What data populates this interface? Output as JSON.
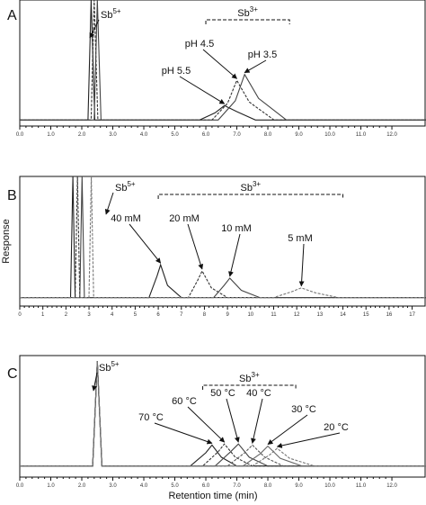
{
  "chart_data": [
    {
      "type": "line",
      "label": "A",
      "xlim": [
        0,
        13.1
      ],
      "ylim": [
        -0.05,
        1
      ],
      "xticks": [
        {
          "value": 0,
          "label": "0.0"
        },
        {
          "value": 1,
          "label": "1.0"
        },
        {
          "value": 2,
          "label": "2.0"
        },
        {
          "value": 3,
          "label": "3.0"
        },
        {
          "value": 4,
          "label": "4.0"
        },
        {
          "value": 5,
          "label": "5.0"
        },
        {
          "value": 6,
          "label": "6.0"
        },
        {
          "value": 7,
          "label": "7.0"
        },
        {
          "value": 8,
          "label": "8.0"
        },
        {
          "value": 9,
          "label": "9.0"
        },
        {
          "value": 10,
          "label": "10.0"
        },
        {
          "value": 11,
          "label": "11.0"
        },
        {
          "value": 12,
          "label": "12.0"
        }
      ],
      "sb5": {
        "base": "Sb",
        "charge": "5+"
      },
      "sb3": {
        "base": "Sb",
        "charge": "3+"
      },
      "series": [
        {
          "name": "pH 5.5",
          "color": "#222",
          "x": [
            0,
            2.2,
            2.3,
            2.42,
            5.8,
            6.3,
            6.6,
            7.0,
            7.6,
            13.1
          ],
          "values": [
            0,
            0,
            1,
            0,
            0,
            0.06,
            0.12,
            0.07,
            0,
            0
          ]
        },
        {
          "name": "pH 4.5",
          "color": "#333",
          "x": [
            0,
            2.3,
            2.4,
            2.52,
            6.2,
            6.7,
            7.0,
            7.4,
            8.2,
            13.1
          ],
          "values": [
            0,
            0,
            1,
            0,
            0,
            0.14,
            0.33,
            0.15,
            0,
            0
          ]
        },
        {
          "name": "pH 3.5",
          "color": "#444",
          "x": [
            0,
            2.4,
            2.5,
            2.62,
            6.4,
            6.95,
            7.25,
            7.7,
            8.6,
            13.1
          ],
          "values": [
            0,
            0,
            1,
            0,
            0,
            0.16,
            0.38,
            0.18,
            0,
            0
          ]
        }
      ]
    },
    {
      "type": "line",
      "label": "B",
      "ylabel": "Response",
      "xlim": [
        0,
        17.6
      ],
      "ylim": [
        -0.07,
        1
      ],
      "xticks": [
        0,
        1,
        2,
        3,
        4,
        5,
        6,
        7,
        8,
        9,
        10,
        11,
        12,
        13,
        14,
        15,
        16,
        17
      ],
      "sb5": {
        "base": "Sb",
        "charge": "5+"
      },
      "sb3": {
        "base": "Sb",
        "charge": "3+"
      },
      "series": [
        {
          "name": "40 mM",
          "color": "#222",
          "x": [
            0,
            2.2,
            2.3,
            2.4,
            5.6,
            5.95,
            6.1,
            6.4,
            7.0,
            17.6
          ],
          "values": [
            0,
            0,
            1,
            0,
            0,
            0.18,
            0.27,
            0.1,
            0,
            0
          ]
        },
        {
          "name": "20 mM",
          "color": "#333",
          "x": [
            0,
            2.4,
            2.5,
            2.6,
            7.3,
            7.7,
            7.9,
            8.3,
            9.0,
            17.6
          ],
          "values": [
            0,
            0,
            1,
            0,
            0,
            0.14,
            0.22,
            0.08,
            0,
            0
          ]
        },
        {
          "name": "10 mM",
          "color": "#444",
          "x": [
            0,
            2.6,
            2.7,
            2.8,
            8.4,
            8.85,
            9.1,
            9.6,
            10.4,
            17.6
          ],
          "values": [
            0,
            0,
            1,
            0,
            0,
            0.1,
            0.16,
            0.06,
            0,
            0
          ]
        },
        {
          "name": "5 mM",
          "color": "#777",
          "x": [
            0,
            3.0,
            3.1,
            3.2,
            11.0,
            11.8,
            12.2,
            12.8,
            13.8,
            17.6
          ],
          "values": [
            0,
            0,
            1,
            0,
            0,
            0.05,
            0.08,
            0.04,
            0,
            0
          ]
        }
      ]
    },
    {
      "type": "line",
      "label": "C",
      "xlabel": "Retention time (min)",
      "xlim": [
        0,
        13.1
      ],
      "ylim": [
        -0.1,
        1
      ],
      "xticks": [
        {
          "value": 0,
          "label": "0.0"
        },
        {
          "value": 1,
          "label": "1.0"
        },
        {
          "value": 2,
          "label": "2.0"
        },
        {
          "value": 3,
          "label": "3.0"
        },
        {
          "value": 4,
          "label": "4.0"
        },
        {
          "value": 5,
          "label": "5.0"
        },
        {
          "value": 6,
          "label": "6.0"
        },
        {
          "value": 7,
          "label": "7.0"
        },
        {
          "value": 8,
          "label": "8.0"
        },
        {
          "value": 9,
          "label": "9.0"
        },
        {
          "value": 10,
          "label": "10.0"
        },
        {
          "value": 11,
          "label": "11.0"
        },
        {
          "value": 12,
          "label": "12.0"
        }
      ],
      "sb5": {
        "base": "Sb",
        "charge": "5+"
      },
      "sb3": {
        "base": "Sb",
        "charge": "3+"
      },
      "series": [
        {
          "name": "70 °C",
          "color": "#222",
          "x": [
            0,
            2.35,
            2.5,
            2.65,
            5.5,
            6.0,
            6.2,
            6.5,
            7.0,
            13.1
          ],
          "values": [
            0,
            0,
            0.95,
            0,
            0,
            0.12,
            0.19,
            0.08,
            0,
            0
          ]
        },
        {
          "name": "60 °C",
          "color": "#333",
          "x": [
            0,
            2.35,
            2.5,
            2.65,
            5.9,
            6.4,
            6.6,
            6.95,
            7.5,
            13.1
          ],
          "values": [
            0,
            0,
            0.95,
            0,
            0,
            0.13,
            0.2,
            0.08,
            0,
            0
          ]
        },
        {
          "name": "50 °C",
          "color": "#444",
          "x": [
            0,
            2.35,
            2.5,
            2.65,
            6.3,
            6.8,
            7.05,
            7.4,
            8.0,
            13.1
          ],
          "values": [
            0,
            0,
            0.95,
            0,
            0,
            0.13,
            0.2,
            0.08,
            0,
            0
          ]
        },
        {
          "name": "40 °C",
          "color": "#555",
          "x": [
            0,
            2.35,
            2.5,
            2.65,
            6.7,
            7.25,
            7.5,
            7.9,
            8.5,
            13.1
          ],
          "values": [
            0,
            0,
            0.95,
            0,
            0,
            0.12,
            0.19,
            0.08,
            0,
            0
          ]
        },
        {
          "name": "30 °C",
          "color": "#666",
          "x": [
            0,
            2.35,
            2.5,
            2.65,
            7.2,
            7.75,
            8.0,
            8.4,
            9.1,
            13.1
          ],
          "values": [
            0,
            0,
            0.95,
            0,
            0,
            0.11,
            0.18,
            0.07,
            0,
            0
          ]
        },
        {
          "name": "20 °C",
          "color": "#777",
          "x": [
            0,
            2.35,
            2.5,
            2.65,
            7.5,
            8.05,
            8.3,
            8.7,
            9.5,
            13.1
          ],
          "values": [
            0,
            0,
            0.95,
            0,
            0,
            0.1,
            0.16,
            0.07,
            0,
            0
          ]
        }
      ]
    }
  ]
}
